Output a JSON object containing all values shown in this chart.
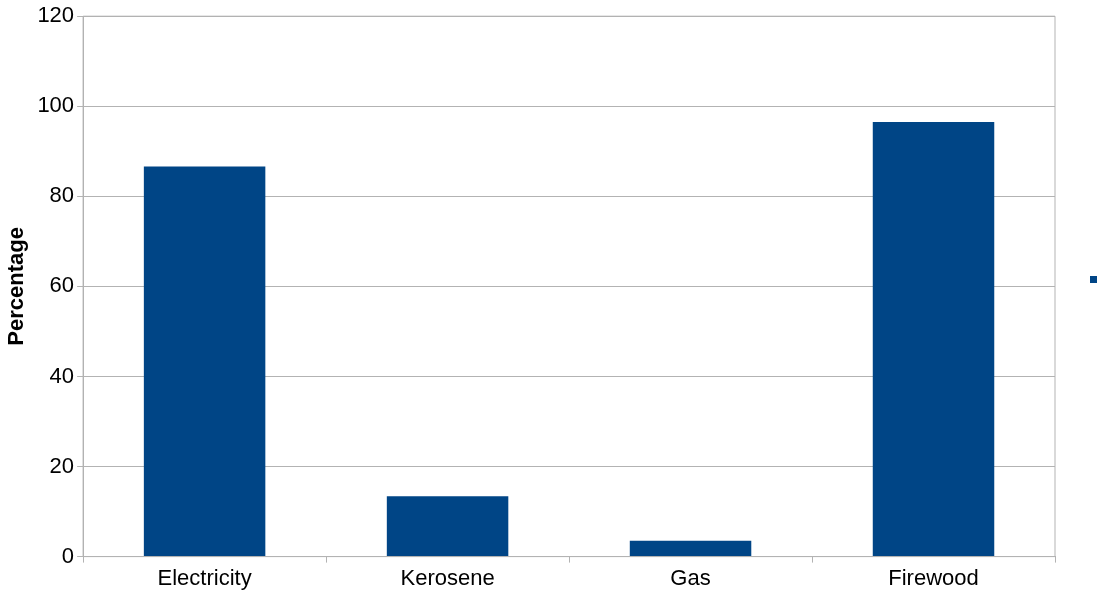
{
  "chart_data": {
    "type": "bar",
    "ylabel": "Percentage",
    "categories": [
      "Electricity",
      "Kerosene",
      "Gas",
      "Firewood"
    ],
    "series": [
      {
        "color": "#004586",
        "values": [
          86.6,
          13.4,
          3.5,
          96.5
        ]
      }
    ],
    "ylim": [
      0,
      120
    ],
    "yticks": [
      0,
      20,
      40,
      60,
      80,
      100,
      120
    ],
    "grid": "y"
  }
}
